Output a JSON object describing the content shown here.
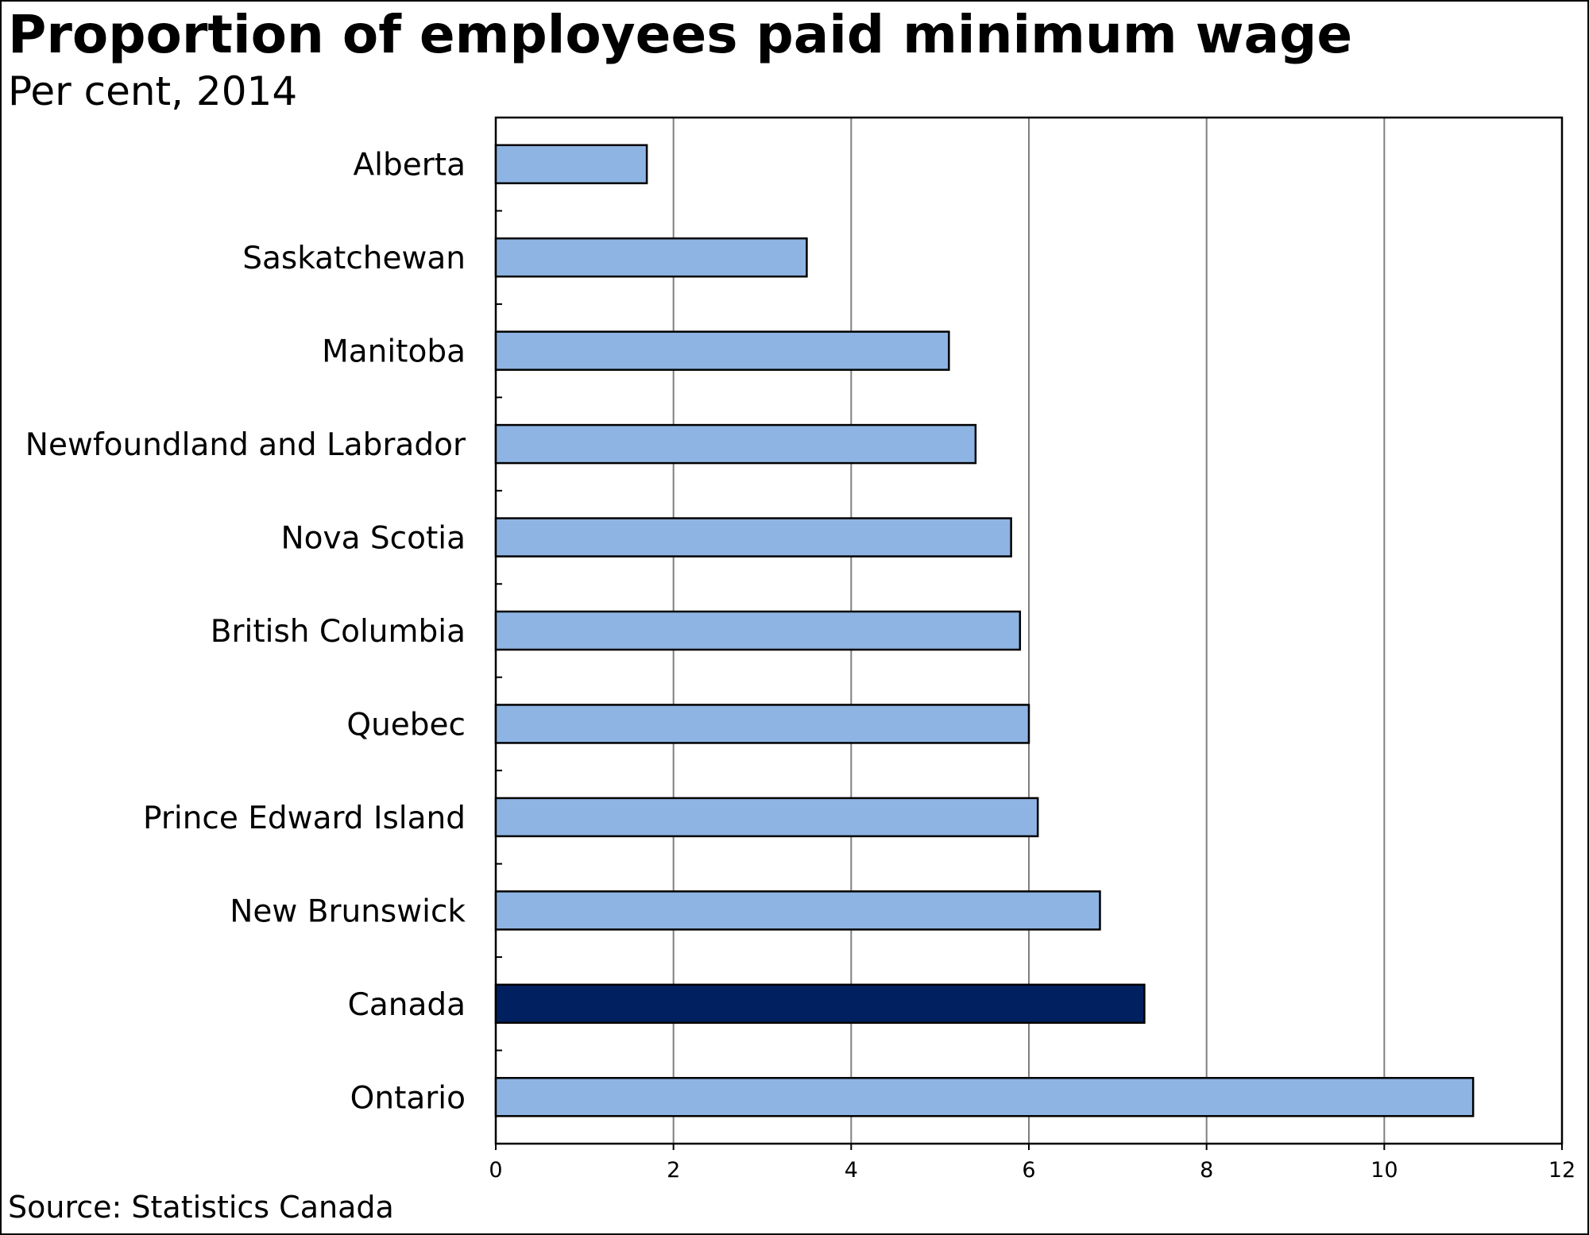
{
  "chart_data": {
    "type": "bar",
    "orientation": "horizontal",
    "title": "Proportion of employees paid minimum wage",
    "subtitle": "Per cent, 2014",
    "source": "Source: Statistics Canada",
    "categories": [
      "Alberta",
      "Saskatchewan",
      "Manitoba",
      "Newfoundland and Labrador",
      "Nova Scotia",
      "British Columbia",
      "Quebec",
      "Prince Edward Island",
      "New Brunswick",
      "Canada",
      "Ontario"
    ],
    "values": [
      1.7,
      3.5,
      5.1,
      5.4,
      5.8,
      5.9,
      6.0,
      6.1,
      6.8,
      7.3,
      11.0
    ],
    "highlight": "Canada",
    "xlim": [
      0,
      12
    ],
    "xticks": [
      "0",
      "2",
      "4",
      "6",
      "8",
      "10",
      "12"
    ],
    "grid": true,
    "colors": {
      "bar": "#8eb4e3",
      "highlight": "#002060",
      "outline": "#000000",
      "grid": "#7f7f7f"
    }
  }
}
